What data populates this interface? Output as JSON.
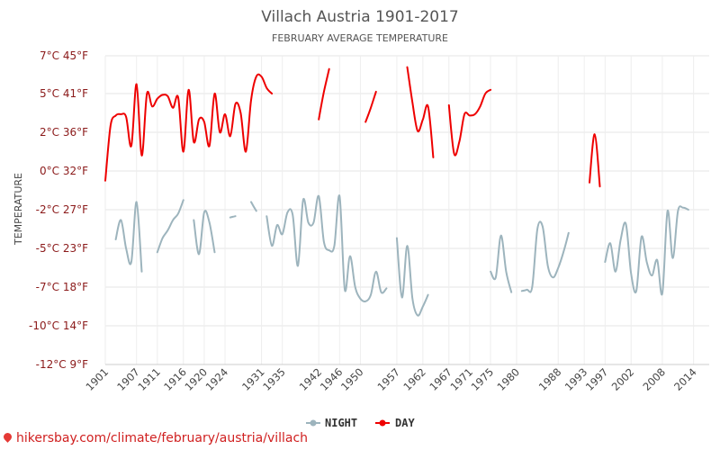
{
  "title": "Villach Austria 1901-2017",
  "subtitle": "FEBRUARY AVERAGE TEMPERATURE",
  "source": "hikersbay.com/climate/february/austria/villach",
  "legend": [
    {
      "key": "night",
      "label": "NIGHT",
      "color": "#9db4bd"
    },
    {
      "key": "day",
      "label": "DAY",
      "color": "#ee0000"
    }
  ],
  "chart_data": {
    "type": "line",
    "title": "Villach Austria 1901-2017",
    "subtitle": "FEBRUARY AVERAGE TEMPERATURE",
    "ylabel": "TEMPERATURE",
    "xlabel": "",
    "xlim": [
      1901,
      2017
    ],
    "ylim": [
      -12,
      7
    ],
    "grid": true,
    "legend_position": "bottom-center",
    "x_ticks": [
      1901,
      1907,
      1911,
      1916,
      1920,
      1924,
      1931,
      1935,
      1942,
      1946,
      1950,
      1957,
      1962,
      1967,
      1971,
      1975,
      1980,
      1988,
      1993,
      1997,
      2002,
      2008,
      2014
    ],
    "y_ticks": [
      {
        "value": 7,
        "label": "7°C 45°F"
      },
      {
        "value": 5,
        "label": "5°C 41°F"
      },
      {
        "value": 2,
        "label": "2°C 36°F"
      },
      {
        "value": 0,
        "label": "0°C 32°F"
      },
      {
        "value": -2,
        "label": "-2°C 27°F"
      },
      {
        "value": -5,
        "label": "-5°C 23°F"
      },
      {
        "value": -7,
        "label": "-7°C 18°F"
      },
      {
        "value": -10,
        "label": "-10°C 14°F"
      },
      {
        "value": -12,
        "label": "-12°C 9°F"
      }
    ],
    "series": [
      {
        "name": "DAY",
        "color": "#ee0000",
        "segments": [
          [
            [
              1901,
              -0.5
            ],
            [
              1902,
              2.5
            ],
            [
              1903,
              3.3
            ],
            [
              1904,
              3.4
            ],
            [
              1905,
              3.2
            ],
            [
              1906,
              1.3
            ],
            [
              1907,
              5.5
            ],
            [
              1908,
              0.8
            ],
            [
              1909,
              5.0
            ],
            [
              1910,
              4.0
            ],
            [
              1911,
              4.6
            ],
            [
              1912,
              4.9
            ],
            [
              1913,
              4.8
            ],
            [
              1914,
              3.9
            ],
            [
              1915,
              4.7
            ],
            [
              1916,
              1.0
            ],
            [
              1917,
              5.2
            ],
            [
              1918,
              1.5
            ],
            [
              1919,
              3.0
            ],
            [
              1920,
              2.8
            ],
            [
              1921,
              1.3
            ],
            [
              1922,
              5.0
            ],
            [
              1923,
              2.0
            ],
            [
              1924,
              3.4
            ],
            [
              1925,
              1.8
            ],
            [
              1926,
              4.2
            ],
            [
              1927,
              3.5
            ],
            [
              1928,
              1.0
            ],
            [
              1929,
              4.5
            ],
            [
              1930,
              5.9
            ],
            [
              1931,
              5.9
            ],
            [
              1932,
              5.3
            ],
            [
              1933,
              5.0
            ]
          ],
          [
            [
              1942,
              3.0
            ],
            [
              1943,
              5.1
            ],
            [
              1944,
              6.3
            ]
          ],
          [
            [
              1951,
              2.8
            ],
            [
              1952,
              3.9
            ],
            [
              1953,
              5.1
            ]
          ],
          [
            [
              1959,
              6.4
            ],
            [
              1960,
              4.3
            ],
            [
              1961,
              2.1
            ],
            [
              1962,
              3.0
            ],
            [
              1963,
              4.0
            ],
            [
              1964,
              0.7
            ]
          ],
          [
            [
              1967,
              4.1
            ],
            [
              1968,
              0.9
            ],
            [
              1969,
              1.5
            ],
            [
              1970,
              3.4
            ],
            [
              1971,
              3.3
            ],
            [
              1972,
              3.4
            ],
            [
              1973,
              4.0
            ],
            [
              1974,
              5.0
            ],
            [
              1975,
              5.2
            ]
          ],
          [
            [
              1994,
              -0.6
            ],
            [
              1995,
              1.9
            ],
            [
              1996,
              -0.8
            ]
          ]
        ]
      },
      {
        "name": "NIGHT",
        "color": "#9db4bd",
        "segments": [
          [
            [
              1903,
              -4.3
            ],
            [
              1904,
              -2.8
            ],
            [
              1905,
              -5.0
            ],
            [
              1906,
              -5.7
            ],
            [
              1907,
              -1.6
            ],
            [
              1908,
              -6.2
            ]
          ],
          [
            [
              1911,
              -5.2
            ],
            [
              1912,
              -4.2
            ],
            [
              1913,
              -3.6
            ],
            [
              1914,
              -2.8
            ],
            [
              1915,
              -2.3
            ],
            [
              1916,
              -1.5
            ]
          ],
          [
            [
              1918,
              -2.8
            ],
            [
              1919,
              -5.3
            ],
            [
              1920,
              -2.2
            ],
            [
              1921,
              -3.0
            ],
            [
              1922,
              -5.2
            ]
          ],
          [
            [
              1925,
              -2.6
            ],
            [
              1926,
              -2.5
            ]
          ],
          [
            [
              1929,
              -1.6
            ],
            [
              1930,
              -2.1
            ]
          ],
          [
            [
              1932,
              -2.5
            ],
            [
              1933,
              -4.8
            ],
            [
              1934,
              -3.2
            ],
            [
              1935,
              -3.9
            ],
            [
              1936,
              -2.2
            ],
            [
              1937,
              -2.4
            ],
            [
              1938,
              -5.9
            ],
            [
              1939,
              -1.5
            ],
            [
              1940,
              -3.0
            ],
            [
              1941,
              -3.0
            ],
            [
              1942,
              -1.3
            ],
            [
              1943,
              -4.5
            ],
            [
              1944,
              -5.1
            ],
            [
              1945,
              -4.8
            ],
            [
              1946,
              -1.3
            ],
            [
              1947,
              -7.2
            ],
            [
              1948,
              -5.4
            ],
            [
              1949,
              -7.0
            ],
            [
              1950,
              -7.9
            ],
            [
              1951,
              -8.1
            ],
            [
              1952,
              -7.6
            ],
            [
              1953,
              -6.2
            ],
            [
              1954,
              -7.4
            ],
            [
              1955,
              -7.1
            ]
          ],
          [
            [
              1957,
              -4.2
            ],
            [
              1958,
              -7.8
            ],
            [
              1959,
              -4.8
            ],
            [
              1960,
              -7.9
            ],
            [
              1961,
              -9.2
            ],
            [
              1962,
              -8.5
            ],
            [
              1963,
              -7.6
            ]
          ],
          [
            [
              1975,
              -6.2
            ],
            [
              1976,
              -6.5
            ],
            [
              1977,
              -4.0
            ],
            [
              1978,
              -6.2
            ],
            [
              1979,
              -7.4
            ]
          ],
          [
            [
              1981,
              -7.3
            ],
            [
              1982,
              -7.2
            ],
            [
              1983,
              -7.0
            ],
            [
              1984,
              -3.5
            ],
            [
              1985,
              -3.3
            ],
            [
              1986,
              -5.9
            ],
            [
              1987,
              -6.5
            ],
            [
              1988,
              -6.0
            ],
            [
              1989,
              -5.2
            ],
            [
              1990,
              -3.8
            ]
          ],
          [
            [
              1997,
              -5.7
            ],
            [
              1998,
              -4.6
            ],
            [
              1999,
              -6.2
            ],
            [
              2000,
              -4.3
            ],
            [
              2001,
              -3.1
            ],
            [
              2002,
              -6.3
            ],
            [
              2003,
              -7.3
            ],
            [
              2004,
              -4.1
            ],
            [
              2005,
              -5.7
            ],
            [
              2006,
              -6.4
            ],
            [
              2007,
              -5.6
            ],
            [
              2008,
              -7.5
            ],
            [
              2009,
              -2.1
            ],
            [
              2010,
              -5.5
            ],
            [
              2011,
              -2.1
            ],
            [
              2012,
              -1.9
            ],
            [
              2013,
              -2.0
            ]
          ]
        ]
      }
    ]
  }
}
